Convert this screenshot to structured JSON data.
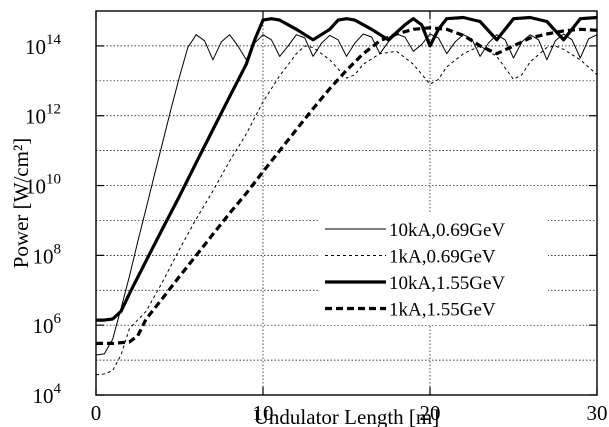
{
  "chart_data": {
    "type": "line",
    "xlabel": "Undulator Length [m]",
    "ylabel": "Power [W/cm²]",
    "y_scale": "log",
    "xlim": [
      0,
      30
    ],
    "ylim": [
      10000,
      1000000000000000.0
    ],
    "grid": true,
    "legend_position": "center-right",
    "x_ticks": [
      {
        "value": 0,
        "label": "0"
      },
      {
        "value": 10,
        "label": "10"
      },
      {
        "value": 20,
        "label": "20"
      },
      {
        "value": 30,
        "label": "30"
      }
    ],
    "y_ticks": [
      {
        "value": 10000,
        "base": "10",
        "exp": "4"
      },
      {
        "value": 1000000,
        "base": "10",
        "exp": "6"
      },
      {
        "value": 100000000,
        "base": "10",
        "exp": "8"
      },
      {
        "value": 10000000000,
        "base": "10",
        "exp": "10"
      },
      {
        "value": 1000000000000,
        "base": "10",
        "exp": "12"
      },
      {
        "value": 100000000000000,
        "base": "10",
        "exp": "14"
      }
    ],
    "series": [
      {
        "name": "10kA,0.69GeV",
        "color": "#000000",
        "width": 1.0,
        "dash": "",
        "points": [
          [
            0,
            140000.0
          ],
          [
            0.5,
            150000.0
          ],
          [
            1.0,
            400000.0
          ],
          [
            1.5,
            3000000.0
          ],
          [
            2,
            25000000.0
          ],
          [
            2.5,
            250000000.0
          ],
          [
            3,
            2200000000.0
          ],
          [
            3.5,
            20000000000.0
          ],
          [
            4,
            180000000000.0
          ],
          [
            4.5,
            1600000000000.0
          ],
          [
            5,
            13000000000000.0
          ],
          [
            5.5,
            90000000000000.0
          ],
          [
            6,
            210000000000000.0
          ],
          [
            6.5,
            140000000000000.0
          ],
          [
            7,
            40000000000000.0
          ],
          [
            7.5,
            130000000000000.0
          ],
          [
            8,
            210000000000000.0
          ],
          [
            8.5,
            100000000000000.0
          ],
          [
            9,
            40000000000000.0
          ],
          [
            9.5,
            120000000000000.0
          ],
          [
            10,
            210000000000000.0
          ],
          [
            10.5,
            150000000000000.0
          ],
          [
            11,
            50000000000000.0
          ],
          [
            11.5,
            100000000000000.0
          ],
          [
            12,
            210000000000000.0
          ],
          [
            12.5,
            170000000000000.0
          ],
          [
            13,
            50000000000000.0
          ],
          [
            13.5,
            120000000000000.0
          ],
          [
            14,
            200000000000000.0
          ],
          [
            14.5,
            150000000000000.0
          ],
          [
            15,
            50000000000000.0
          ],
          [
            15.5,
            120000000000000.0
          ],
          [
            16,
            220000000000000.0
          ],
          [
            16.5,
            180000000000000.0
          ],
          [
            17,
            60000000000000.0
          ],
          [
            17.5,
            130000000000000.0
          ],
          [
            18,
            220000000000000.0
          ],
          [
            18.5,
            180000000000000.0
          ],
          [
            19,
            70000000000000.0
          ],
          [
            19.5,
            110000000000000.0
          ],
          [
            20,
            220000000000000.0
          ],
          [
            20.5,
            170000000000000.0
          ],
          [
            21,
            60000000000000.0
          ],
          [
            21.5,
            130000000000000.0
          ],
          [
            22,
            210000000000000.0
          ],
          [
            22.5,
            160000000000000.0
          ],
          [
            23,
            50000000000000.0
          ],
          [
            23.5,
            120000000000000.0
          ],
          [
            24,
            210000000000000.0
          ],
          [
            24.5,
            150000000000000.0
          ],
          [
            25,
            45000000000000.0
          ],
          [
            25.5,
            130000000000000.0
          ],
          [
            26,
            210000000000000.0
          ],
          [
            26.5,
            150000000000000.0
          ],
          [
            27,
            40000000000000.0
          ],
          [
            27.5,
            140000000000000.0
          ],
          [
            28,
            220000000000000.0
          ],
          [
            28.5,
            150000000000000.0
          ],
          [
            29,
            45000000000000.0
          ],
          [
            29.5,
            160000000000000.0
          ],
          [
            30,
            210000000000000.0
          ]
        ]
      },
      {
        "name": "1kA,0.69GeV",
        "color": "#000000",
        "width": 1.0,
        "dash": "3 3",
        "points": [
          [
            0,
            38000.0
          ],
          [
            0.5,
            40000.0
          ],
          [
            1,
            50000.0
          ],
          [
            1.5,
            140000.0
          ],
          [
            2,
            800000.0
          ],
          [
            3,
            2500000.0
          ],
          [
            4,
            18000000.0
          ],
          [
            5,
            150000000.0
          ],
          [
            6,
            1100000000.0
          ],
          [
            7,
            7000000000.0
          ],
          [
            8,
            50000000000.0
          ],
          [
            9,
            300000000000.0
          ],
          [
            10,
            2500000000000.0
          ],
          [
            11,
            14000000000000.0
          ],
          [
            12,
            60000000000000.0
          ],
          [
            12.5,
            100000000000000.0
          ],
          [
            13,
            90000000000000.0
          ],
          [
            14,
            40000000000000.0
          ],
          [
            15,
            12000000000000.0
          ],
          [
            15.5,
            15000000000000.0
          ],
          [
            16,
            30000000000000.0
          ],
          [
            17,
            60000000000000.0
          ],
          [
            18,
            70000000000000.0
          ],
          [
            19,
            30000000000000.0
          ],
          [
            20,
            8000000000000.0
          ],
          [
            20.5,
            11000000000000.0
          ],
          [
            21,
            25000000000000.0
          ],
          [
            22,
            60000000000000.0
          ],
          [
            23,
            100000000000000.0
          ],
          [
            24,
            50000000000000.0
          ],
          [
            25,
            11000000000000.0
          ],
          [
            25.5,
            15000000000000.0
          ],
          [
            26,
            35000000000000.0
          ],
          [
            27,
            90000000000000.0
          ],
          [
            27.5,
            100000000000000.0
          ],
          [
            28,
            80000000000000.0
          ],
          [
            29,
            40000000000000.0
          ],
          [
            30,
            15000000000000.0
          ]
        ]
      },
      {
        "name": "10kA,1.55GeV",
        "color": "#000000",
        "width": 3.2,
        "dash": "",
        "points": [
          [
            0,
            1400000.0
          ],
          [
            0.5,
            1400000.0
          ],
          [
            1,
            1500000.0
          ],
          [
            1.5,
            2500000.0
          ],
          [
            2,
            8000000.0
          ],
          [
            3,
            70000000.0
          ],
          [
            4,
            600000000.0
          ],
          [
            5,
            5000000000.0
          ],
          [
            6,
            45000000000.0
          ],
          [
            7,
            400000000000.0
          ],
          [
            8,
            3500000000000.0
          ],
          [
            9,
            30000000000000.0
          ],
          [
            9.5,
            150000000000000.0
          ],
          [
            10,
            550000000000000.0
          ],
          [
            10.5,
            600000000000000.0
          ],
          [
            11,
            550000000000000.0
          ],
          [
            12,
            300000000000000.0
          ],
          [
            13,
            150000000000000.0
          ],
          [
            14,
            300000000000000.0
          ],
          [
            14.5,
            550000000000000.0
          ],
          [
            15,
            600000000000000.0
          ],
          [
            15.5,
            550000000000000.0
          ],
          [
            16.5,
            300000000000000.0
          ],
          [
            17.5,
            150000000000000.0
          ],
          [
            18.5,
            400000000000000.0
          ],
          [
            19,
            600000000000000.0
          ],
          [
            19.5,
            400000000000000.0
          ],
          [
            20,
            100000000000000.0
          ],
          [
            20.5,
            300000000000000.0
          ],
          [
            21,
            600000000000000.0
          ],
          [
            22,
            650000000000000.0
          ],
          [
            23,
            500000000000000.0
          ],
          [
            24,
            150000000000000.0
          ],
          [
            24.5,
            300000000000000.0
          ],
          [
            25,
            600000000000000.0
          ],
          [
            26,
            650000000000000.0
          ],
          [
            27,
            500000000000000.0
          ],
          [
            28,
            150000000000000.0
          ],
          [
            28.5,
            300000000000000.0
          ],
          [
            29,
            600000000000000.0
          ],
          [
            30,
            650000000000000.0
          ]
        ]
      },
      {
        "name": "1kA,1.55GeV",
        "color": "#000000",
        "width": 3.2,
        "dash": "7 4",
        "points": [
          [
            0,
            300000.0
          ],
          [
            1,
            300000.0
          ],
          [
            2,
            330000.0
          ],
          [
            2.5,
            500000.0
          ],
          [
            3,
            1500000.0
          ],
          [
            4,
            6000000.0
          ],
          [
            5,
            25000000.0
          ],
          [
            6,
            100000000.0
          ],
          [
            7,
            400000000.0
          ],
          [
            8,
            1600000000.0
          ],
          [
            9,
            6000000000.0
          ],
          [
            10,
            25000000000.0
          ],
          [
            11,
            100000000000.0
          ],
          [
            12,
            400000000000.0
          ],
          [
            13,
            1600000000000.0
          ],
          [
            14,
            6000000000000.0
          ],
          [
            15,
            20000000000000.0
          ],
          [
            16,
            60000000000000.0
          ],
          [
            17,
            140000000000000.0
          ],
          [
            18,
            220000000000000.0
          ],
          [
            19,
            300000000000000.0
          ],
          [
            20,
            330000000000000.0
          ],
          [
            21,
            300000000000000.0
          ],
          [
            22,
            200000000000000.0
          ],
          [
            23,
            100000000000000.0
          ],
          [
            24,
            60000000000000.0
          ],
          [
            25,
            100000000000000.0
          ],
          [
            26,
            170000000000000.0
          ],
          [
            27,
            220000000000000.0
          ],
          [
            28,
            270000000000000.0
          ],
          [
            29,
            300000000000000.0
          ],
          [
            30,
            280000000000000.0
          ]
        ]
      }
    ]
  }
}
